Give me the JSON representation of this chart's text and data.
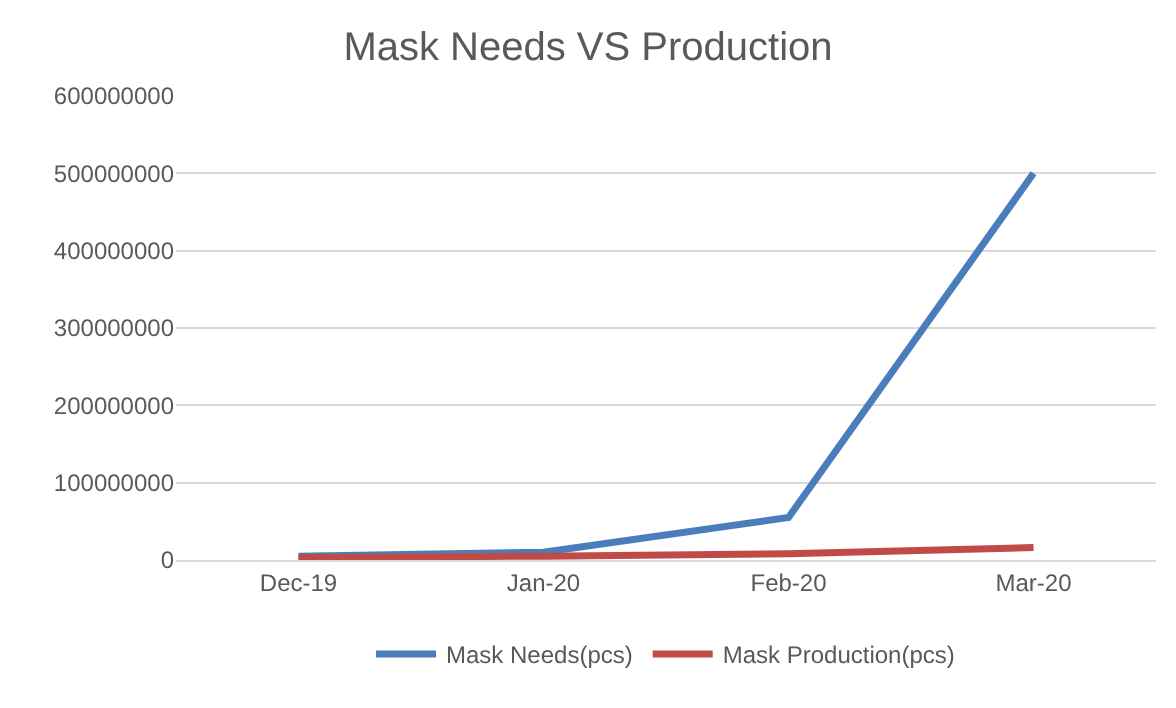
{
  "chart_data": {
    "type": "line",
    "title": "Mask Needs VS Production",
    "categories": [
      "Dec-19",
      "Jan-20",
      "Feb-20",
      "Mar-20"
    ],
    "series": [
      {
        "name": "Mask Needs(pcs)",
        "color": "#4a7ebb",
        "values": [
          5000000,
          10000000,
          55000000,
          500000000
        ]
      },
      {
        "name": "Mask Production(pcs)",
        "color": "#be4b48",
        "values": [
          3000000,
          5000000,
          8000000,
          16000000
        ]
      }
    ],
    "ylim": [
      0,
      600000000
    ],
    "yticks": [
      0,
      100000000,
      200000000,
      300000000,
      400000000,
      500000000,
      600000000
    ],
    "grid": "y",
    "legend": "bottom",
    "marker": "none",
    "line_style": "solid"
  }
}
